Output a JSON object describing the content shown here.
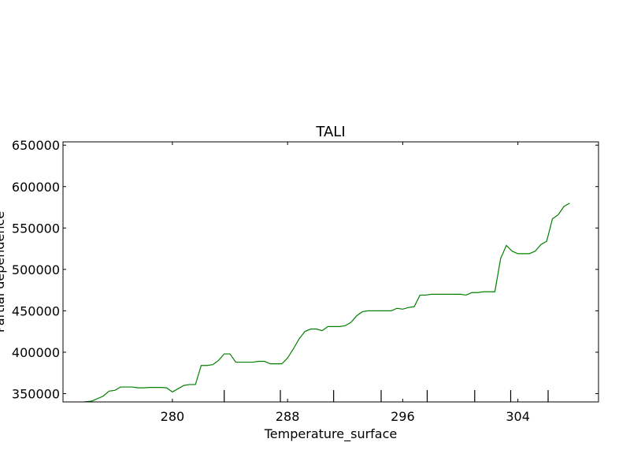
{
  "chart_data": {
    "type": "line",
    "title": "TALI",
    "xlabel": "Temperature_surface",
    "ylabel": "Partial dependence",
    "xlim": [
      272.4,
      309.6
    ],
    "ylim": [
      340000,
      654000
    ],
    "xticks": [
      280,
      288,
      296,
      304
    ],
    "yticks": [
      350000,
      400000,
      450000,
      500000,
      550000,
      600000,
      650000
    ],
    "rug": [
      283.6,
      287.5,
      291.2,
      294.5,
      297.7,
      301.0,
      303.5,
      306.1
    ],
    "grid": false,
    "series": [
      {
        "color": "#008000",
        "x": [
          273.6,
          274.4,
          275.2,
          275.6,
          276.0,
          276.4,
          276.8,
          277.2,
          277.6,
          278.0,
          278.4,
          278.8,
          279.2,
          279.6,
          280.0,
          280.4,
          280.8,
          281.2,
          281.6,
          282.0,
          282.4,
          282.8,
          283.2,
          283.6,
          284.0,
          284.4,
          284.8,
          285.2,
          285.6,
          286.0,
          286.4,
          286.8,
          287.2,
          287.6,
          288.0,
          288.4,
          288.8,
          289.2,
          289.6,
          290.0,
          290.4,
          290.8,
          291.2,
          291.6,
          292.0,
          292.4,
          292.8,
          293.2,
          293.6,
          294.0,
          294.4,
          294.8,
          295.2,
          295.6,
          296.0,
          296.4,
          296.8,
          297.2,
          297.6,
          298.0,
          298.4,
          298.8,
          299.2,
          299.6,
          300.0,
          300.4,
          300.8,
          301.2,
          301.6,
          302.0,
          302.4,
          302.8,
          303.2,
          303.6,
          304.0,
          304.4,
          304.8,
          305.2,
          305.6,
          306.0,
          306.4,
          306.8,
          307.2,
          307.6
        ],
        "y": [
          339500,
          341000,
          347000,
          353000,
          354000,
          358000,
          358000,
          358000,
          357000,
          357000,
          357500,
          357500,
          357500,
          357000,
          352000,
          356000,
          360000,
          361000,
          361000,
          384000,
          384000,
          385000,
          390000,
          398000,
          398000,
          388000,
          388000,
          388000,
          388000,
          389000,
          389000,
          386000,
          386000,
          386000,
          393000,
          404000,
          416000,
          425000,
          428000,
          428000,
          426000,
          431000,
          431000,
          431000,
          432000,
          436000,
          444000,
          449000,
          450000,
          450000,
          450000,
          450000,
          450000,
          453000,
          452000,
          454000,
          455000,
          469000,
          469000,
          470000,
          470000,
          470000,
          470000,
          470000,
          470000,
          469000,
          472000,
          472000,
          473000,
          473000,
          473000,
          513000,
          529000,
          522000,
          519000,
          519000,
          519000,
          522000,
          530000,
          534000,
          561000,
          566000,
          576000,
          580000
        ]
      }
    ]
  }
}
